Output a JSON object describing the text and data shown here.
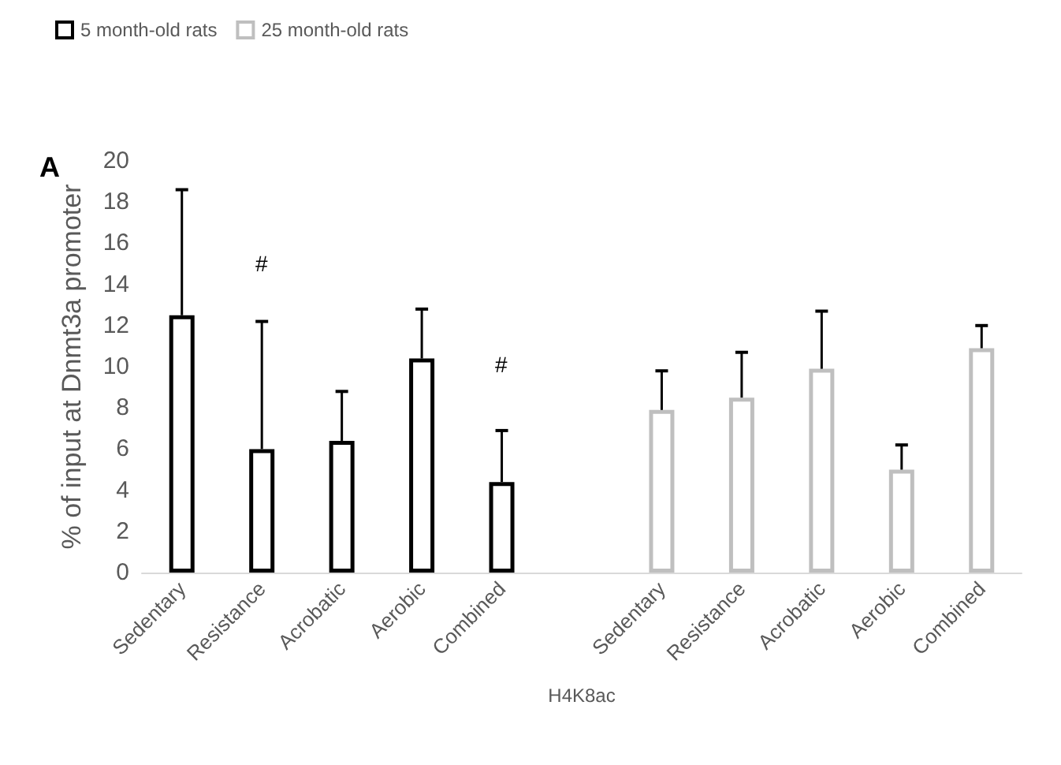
{
  "chart_data": {
    "type": "bar",
    "ylabel": "% of input at Dnmt3a promoter",
    "xlabel": "H4K8ac",
    "categories": [
      "Sedentary",
      "Resistance",
      "Acrobatic",
      "Aerobic",
      "Combined",
      null,
      "Sedentary",
      "Resistance",
      "Acrobatic",
      "Aerobic",
      "Combined"
    ],
    "series": [
      {
        "name": "5 month-old rats",
        "color": "#000000",
        "values": [
          12.5,
          6.0,
          6.4,
          10.4,
          4.4,
          null,
          null,
          null,
          null,
          null,
          null
        ],
        "errors": [
          [
            12.5,
            18.6
          ],
          [
            6.0,
            12.2
          ],
          [
            6.4,
            8.8
          ],
          [
            10.4,
            12.8
          ],
          [
            4.4,
            6.9
          ],
          null,
          null,
          null,
          null,
          null,
          null
        ]
      },
      {
        "name": "25 month-old rats",
        "color": "#bfbfbf",
        "values": [
          null,
          null,
          null,
          null,
          null,
          null,
          7.9,
          8.5,
          9.9,
          5.0,
          10.9
        ],
        "errors": [
          null,
          null,
          null,
          null,
          null,
          null,
          [
            7.9,
            9.8
          ],
          [
            8.5,
            10.7
          ],
          [
            9.9,
            12.7
          ],
          [
            5.0,
            6.2
          ],
          [
            10.9,
            12.0
          ]
        ]
      }
    ],
    "ylim": [
      0,
      20
    ],
    "yticks": [
      0,
      2,
      4,
      6,
      8,
      10,
      12,
      14,
      16,
      18,
      20
    ],
    "grid": false,
    "legend": "top left",
    "annotations": [
      "A",
      "#",
      "#"
    ]
  }
}
